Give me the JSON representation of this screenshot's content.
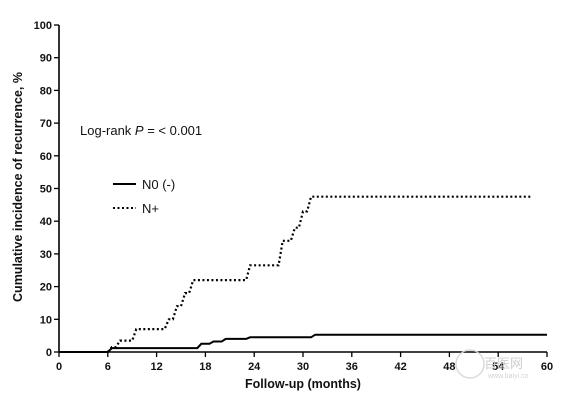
{
  "chart_data": {
    "type": "line",
    "xlabel": "Follow-up (months)",
    "ylabel": "Cumulative incidence of recurrence, %",
    "xlim": [
      0,
      60
    ],
    "ylim": [
      0,
      100
    ],
    "xticks": [
      0,
      6,
      12,
      18,
      24,
      30,
      36,
      42,
      48,
      54,
      60
    ],
    "yticks": [
      0,
      10,
      20,
      30,
      40,
      50,
      60,
      70,
      80,
      90,
      100
    ],
    "annotation": {
      "prefix": "Log-rank ",
      "italic": "P",
      "suffix": " = < 0.001"
    },
    "legend_position": "left-middle",
    "series": [
      {
        "name": "N0 (-)",
        "style": "solid",
        "color": "#000000",
        "points": [
          [
            0,
            0
          ],
          [
            6,
            0
          ],
          [
            6.5,
            1.2
          ],
          [
            17,
            1.2
          ],
          [
            17.5,
            2.5
          ],
          [
            18.5,
            2.5
          ],
          [
            19,
            3.2
          ],
          [
            20,
            3.2
          ],
          [
            20.5,
            4
          ],
          [
            23,
            4
          ],
          [
            23.5,
            4.5
          ],
          [
            31,
            4.5
          ],
          [
            31.5,
            5.3
          ],
          [
            60,
            5.3
          ]
        ]
      },
      {
        "name": "N+",
        "style": "dotted",
        "color": "#000000",
        "points": [
          [
            6,
            0
          ],
          [
            6.5,
            1.5
          ],
          [
            7,
            1.5
          ],
          [
            7.5,
            3.5
          ],
          [
            9,
            3.5
          ],
          [
            9.5,
            7
          ],
          [
            13,
            7
          ],
          [
            13.5,
            10
          ],
          [
            14,
            10
          ],
          [
            14.5,
            14
          ],
          [
            15,
            14
          ],
          [
            15.5,
            18
          ],
          [
            16,
            18
          ],
          [
            16.5,
            22
          ],
          [
            23,
            22
          ],
          [
            23.5,
            26.5
          ],
          [
            27,
            26.5
          ],
          [
            27.5,
            34
          ],
          [
            28.5,
            34
          ],
          [
            29,
            38
          ],
          [
            29.5,
            38
          ],
          [
            30,
            43
          ],
          [
            30.5,
            43
          ],
          [
            31,
            47.5
          ],
          [
            58,
            47.5
          ]
        ]
      }
    ]
  },
  "watermark": {
    "text": "百医网",
    "sub": "www.baiyi.cn"
  }
}
